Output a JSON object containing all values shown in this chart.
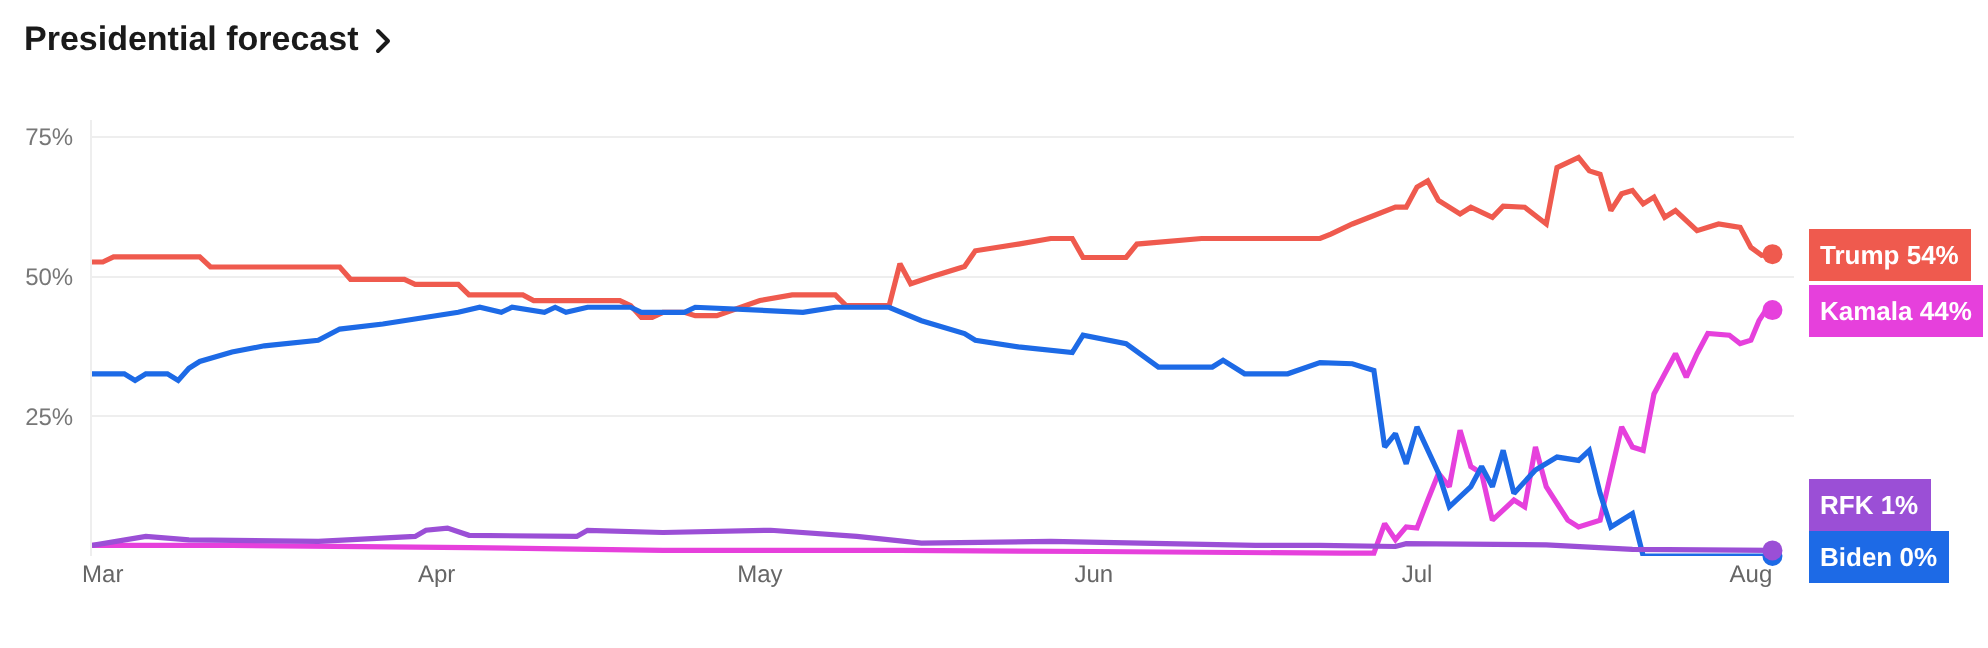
{
  "chart_data": {
    "type": "line",
    "title": "Presidential forecast",
    "xlim": [
      "--02-28",
      "--08-05"
    ],
    "xticks": [
      {
        "value": "--03-01",
        "label": "Mar"
      },
      {
        "value": "--04-01",
        "label": "Apr"
      },
      {
        "value": "--05-01",
        "label": "May"
      },
      {
        "value": "--06-01",
        "label": "Jun"
      },
      {
        "value": "--07-01",
        "label": "Jul"
      },
      {
        "value": "--08-01",
        "label": "Aug"
      }
    ],
    "ylim": [
      0,
      78
    ],
    "yticks": [
      {
        "value": 25,
        "label": "25%"
      },
      {
        "value": 50,
        "label": "50%"
      },
      {
        "value": 75,
        "label": "75%"
      }
    ],
    "grid": "y",
    "series": [
      {
        "name": "Trump",
        "color": "#ef5a4e",
        "x": [
          "--02-28",
          "--03-01",
          "--03-02",
          "--03-10",
          "--03-11",
          "--03-23",
          "--03-24",
          "--03-29",
          "--03-30",
          "--04-03",
          "--04-04",
          "--04-09",
          "--04-10",
          "--04-18",
          "--04-19",
          "--04-20",
          "--04-21",
          "--04-22",
          "--04-24",
          "--04-25",
          "--04-27",
          "--05-01",
          "--05-04",
          "--05-08",
          "--05-09",
          "--05-13",
          "--05-14",
          "--05-15",
          "--05-17",
          "--05-20",
          "--05-21",
          "--05-25",
          "--05-28",
          "--05-30",
          "--05-31",
          "--06-04",
          "--06-05",
          "--06-11",
          "--06-22",
          "--06-23",
          "--06-25",
          "--06-29",
          "--06-30",
          "--07-01",
          "--07-02",
          "--07-03",
          "--07-05",
          "--07-06",
          "--07-08",
          "--07-09",
          "--07-11",
          "--07-13",
          "--07-14",
          "--07-16",
          "--07-17",
          "--07-18",
          "--07-19",
          "--07-20",
          "--07-21",
          "--07-22",
          "--07-23",
          "--07-24",
          "--07-25",
          "--07-27",
          "--07-29",
          "--07-31",
          "--08-01",
          "--08-02",
          "--08-03"
        ],
        "values": [
          52.6,
          52.6,
          53.5,
          53.5,
          51.7,
          51.7,
          49.5,
          49.5,
          48.6,
          48.6,
          46.7,
          46.7,
          45.7,
          45.7,
          44.8,
          42.7,
          42.7,
          43.6,
          43.6,
          43,
          43,
          45.7,
          46.7,
          46.7,
          44.8,
          44.8,
          52.3,
          48.7,
          50,
          51.8,
          54.6,
          55.8,
          56.8,
          56.8,
          53.4,
          53.4,
          55.8,
          56.8,
          56.8,
          57.6,
          59.4,
          62.4,
          62.4,
          66,
          67.1,
          63.6,
          61.2,
          62.4,
          60.6,
          62.6,
          62.4,
          59.4,
          69.5,
          71.3,
          68.9,
          68.3,
          61.8,
          64.8,
          65.4,
          63,
          64.2,
          60.6,
          61.8,
          58.2,
          59.4,
          58.8,
          55.2,
          53.8,
          54
        ],
        "value_labels": [
          null,
          null,
          null,
          null,
          null,
          null,
          null,
          null,
          null,
          null,
          null,
          null,
          null,
          null,
          null,
          null,
          null,
          null,
          null,
          null,
          null,
          null,
          null,
          null,
          null,
          null,
          null,
          null,
          null,
          null,
          null,
          null,
          null,
          null,
          null,
          null,
          null,
          null,
          null,
          null,
          null,
          null,
          null,
          null,
          null,
          null,
          null,
          null,
          null,
          null,
          null,
          null,
          null,
          null,
          null,
          null,
          null,
          null,
          null,
          null,
          null,
          null,
          null,
          null,
          null,
          null,
          null,
          null,
          "54%"
        ]
      },
      {
        "name": "Kamala",
        "color": "#e640dc",
        "x": [
          "--02-28",
          "--03-13",
          "--04-04",
          "--04-22",
          "--05-14",
          "--06-01",
          "--06-24",
          "--06-27",
          "--06-28",
          "--06-29",
          "--06-30",
          "--07-01",
          "--07-02",
          "--07-03",
          "--07-04",
          "--07-05",
          "--07-06",
          "--07-07",
          "--07-08",
          "--07-10",
          "--07-11",
          "--07-12",
          "--07-13",
          "--07-15",
          "--07-16",
          "--07-18",
          "--07-19",
          "--07-20",
          "--07-21",
          "--07-22",
          "--07-23",
          "--07-24",
          "--07-25",
          "--07-26",
          "--07-27",
          "--07-28",
          "--07-30",
          "--07-31",
          "--08-01",
          "--08-01T18:00",
          "--08-02T12:00",
          "--08-03"
        ],
        "values": [
          1.9,
          1.9,
          1.5,
          1,
          1,
          0.8,
          0.5,
          0.5,
          5.8,
          2.9,
          5.2,
          5,
          10,
          14.8,
          12.4,
          22.5,
          16,
          14.8,
          6.4,
          10,
          8.8,
          19.5,
          12.4,
          6.4,
          5.2,
          6.4,
          14.8,
          23.1,
          19.5,
          18.9,
          29,
          32.6,
          36.2,
          32,
          36.2,
          39.8,
          39.5,
          38,
          38.6,
          42.1,
          44.3,
          44
        ],
        "value_labels": [
          null,
          null,
          null,
          null,
          null,
          null,
          null,
          null,
          null,
          null,
          null,
          null,
          null,
          null,
          null,
          null,
          null,
          null,
          null,
          null,
          null,
          null,
          null,
          null,
          null,
          null,
          null,
          null,
          null,
          null,
          null,
          null,
          null,
          null,
          null,
          null,
          null,
          null,
          null,
          null,
          null,
          "44%"
        ]
      },
      {
        "name": "Biden",
        "color": "#1d6ae6",
        "x": [
          "--02-28",
          "--03-03",
          "--03-04",
          "--03-05",
          "--03-07",
          "--03-08",
          "--03-09",
          "--03-10",
          "--03-13",
          "--03-16",
          "--03-21",
          "--03-23",
          "--03-27",
          "--04-03",
          "--04-05",
          "--04-07",
          "--04-08",
          "--04-11",
          "--04-12",
          "--04-13",
          "--04-15",
          "--04-19",
          "--04-20",
          "--04-24",
          "--04-25",
          "--05-05",
          "--05-08",
          "--05-13",
          "--05-16",
          "--05-20",
          "--05-21",
          "--05-25",
          "--05-30",
          "--05-31",
          "--06-04",
          "--06-07",
          "--06-12",
          "--06-13",
          "--06-15",
          "--06-19",
          "--06-22",
          "--06-25",
          "--06-27",
          "--06-28",
          "--06-29",
          "--06-30",
          "--07-01",
          "--07-03",
          "--07-04",
          "--07-06",
          "--07-07",
          "--07-08",
          "--07-09",
          "--07-10",
          "--07-12",
          "--07-14",
          "--07-16",
          "--07-17",
          "--07-18",
          "--07-19",
          "--07-21",
          "--07-22",
          "--08-03"
        ],
        "values": [
          32.6,
          32.6,
          31.4,
          32.6,
          32.6,
          31.4,
          33.6,
          34.8,
          36.5,
          37.6,
          38.6,
          40.6,
          41.5,
          43.6,
          44.5,
          43.6,
          44.5,
          43.6,
          44.5,
          43.6,
          44.5,
          44.5,
          43.6,
          43.6,
          44.5,
          43.6,
          44.5,
          44.5,
          42.1,
          39.8,
          38.6,
          37.4,
          36.4,
          39.5,
          38,
          33.8,
          33.8,
          35,
          32.6,
          32.6,
          34.6,
          34.4,
          33.2,
          19.5,
          21.9,
          16.5,
          23.1,
          14.8,
          8.8,
          12.4,
          16,
          12.4,
          18.9,
          11.2,
          15.4,
          17.7,
          17.1,
          18.9,
          11.2,
          5.2,
          7.6,
          0,
          0
        ],
        "value_labels": [
          null,
          null,
          null,
          null,
          null,
          null,
          null,
          null,
          null,
          null,
          null,
          null,
          null,
          null,
          null,
          null,
          null,
          null,
          null,
          null,
          null,
          null,
          null,
          null,
          null,
          null,
          null,
          null,
          null,
          null,
          null,
          null,
          null,
          null,
          null,
          null,
          null,
          null,
          null,
          null,
          null,
          null,
          null,
          null,
          null,
          null,
          null,
          null,
          null,
          null,
          null,
          null,
          null,
          null,
          null,
          null,
          null,
          null,
          null,
          null,
          null,
          null,
          "0%"
        ]
      },
      {
        "name": "RFK",
        "color": "#9b4fd6",
        "x": [
          "--02-28",
          "--03-05",
          "--03-09",
          "--03-21",
          "--03-30",
          "--03-31",
          "--04-02",
          "--04-04",
          "--04-14",
          "--04-15",
          "--04-22",
          "--05-02",
          "--05-10",
          "--05-16",
          "--05-28",
          "--06-16",
          "--06-22",
          "--06-29",
          "--06-30",
          "--07-13",
          "--07-21",
          "--08-03"
        ],
        "values": [
          1.9,
          3.5,
          2.9,
          2.6,
          3.5,
          4.6,
          5,
          3.7,
          3.5,
          4.6,
          4.2,
          4.6,
          3.5,
          2.3,
          2.6,
          1.9,
          1.9,
          1.7,
          2.2,
          2,
          1.2,
          1
        ],
        "value_labels": [
          null,
          null,
          null,
          null,
          null,
          null,
          null,
          null,
          null,
          null,
          null,
          null,
          null,
          null,
          null,
          null,
          null,
          null,
          null,
          null,
          null,
          "1%"
        ]
      }
    ]
  }
}
